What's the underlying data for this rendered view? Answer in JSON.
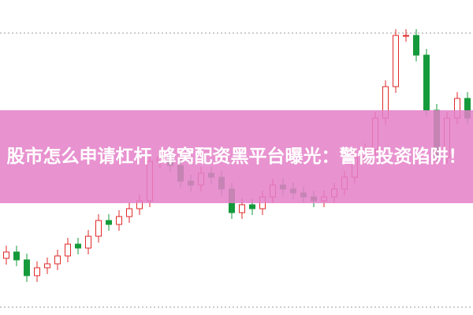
{
  "title": "股市怎么申请杠杆 蜂窝配资黑平台曝光：警惕投资陷阱！",
  "chart_data": {
    "type": "candlestick",
    "ylim": [
      0,
      100
    ],
    "up_color": "#e02828",
    "down_color": "#149a3a",
    "open": [
      18,
      20,
      17.5,
      12.5,
      15,
      16.25,
      18.75,
      22.5,
      21.25,
      25,
      30,
      28.75,
      31.25,
      33.75,
      36.25,
      48.75,
      50,
      47.5,
      42.5,
      41.25,
      45,
      43.75,
      40,
      32.5,
      35,
      33.75,
      37.5,
      41.25,
      40,
      38.75,
      37.5,
      36.25,
      37.5,
      40,
      43.75,
      50,
      52.5,
      62.5,
      72.5,
      88.75,
      88.75,
      82.5,
      65,
      50,
      62.5,
      68.75
    ],
    "high": [
      22,
      22,
      19.5,
      17,
      18.25,
      20.75,
      24.5,
      24.5,
      27,
      32,
      32,
      33.25,
      35.75,
      38.25,
      50.75,
      52,
      52,
      49.5,
      44.5,
      47,
      47,
      45.75,
      42,
      37,
      37,
      39.5,
      43.25,
      43.25,
      42,
      40.75,
      39.5,
      39.5,
      42,
      45.75,
      52,
      54.5,
      64.5,
      74.5,
      90.75,
      90.75,
      90.75,
      84.5,
      67,
      64.5,
      70.75,
      70.75
    ],
    "low": [
      16,
      15.5,
      10.5,
      10.5,
      13,
      14.25,
      16.75,
      19.25,
      19.25,
      23,
      26.75,
      26.75,
      29.25,
      31.75,
      34.25,
      46.75,
      45.5,
      40.5,
      39.25,
      39.25,
      41.75,
      38,
      30.5,
      30.5,
      31.75,
      31.75,
      35.5,
      38,
      36.75,
      35.5,
      34.25,
      34.25,
      35.5,
      38,
      41.75,
      48,
      50.5,
      60.5,
      70.5,
      86.75,
      80.5,
      63,
      48,
      48,
      60.5,
      60.5
    ],
    "close": [
      20,
      17.5,
      12.5,
      15,
      16.25,
      18.75,
      22.5,
      21.25,
      25,
      30,
      28.75,
      31.25,
      33.75,
      36.25,
      48.75,
      50,
      47.5,
      42.5,
      41.25,
      45,
      43.75,
      40,
      32.5,
      35,
      33.75,
      37.5,
      41.25,
      40,
      38.75,
      37.5,
      36.25,
      37.5,
      40,
      43.75,
      50,
      52.5,
      62.5,
      72.5,
      88.75,
      88.75,
      82.5,
      65,
      50,
      62.5,
      68.75,
      62.5
    ]
  }
}
